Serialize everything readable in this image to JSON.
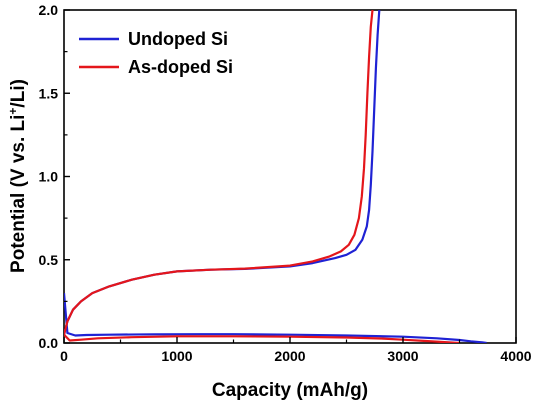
{
  "chart_data": {
    "type": "line",
    "xlabel": "Capacity (mAh/g)",
    "ylabel_parts": {
      "main": "Potential (V vs. Li",
      "superscript": "+",
      "end": "/Li)"
    },
    "xlim": [
      0,
      4000
    ],
    "ylim": [
      0,
      2.0
    ],
    "xticks": [
      "0",
      "1000",
      "2000",
      "3000",
      "4000"
    ],
    "yticks": [
      "0.0",
      "0.5",
      "1.0",
      "1.5",
      "2.0"
    ],
    "grid": false,
    "legend": "top-left",
    "series": [
      {
        "name": "Undoped Si",
        "color": "#1f22d4",
        "segments": [
          {
            "label": "discharge",
            "x": [
              0,
              30,
              100,
              200,
              400,
              800,
              1200,
              1500,
              2000,
              2500,
              3000,
              3300,
              3500,
              3600,
              3700,
              3740
            ],
            "y": [
              0.3,
              0.06,
              0.045,
              0.048,
              0.05,
              0.052,
              0.053,
              0.053,
              0.05,
              0.045,
              0.038,
              0.028,
              0.018,
              0.01,
              0.004,
              0.0
            ]
          },
          {
            "label": "charge",
            "x": [
              0,
              30,
              80,
              150,
              250,
              400,
              600,
              800,
              1000,
              1300,
              1600,
              2000,
              2200,
              2400,
              2500,
              2580,
              2640,
              2680,
              2700,
              2715,
              2730,
              2745,
              2760,
              2775,
              2790
            ],
            "y": [
              0.05,
              0.13,
              0.2,
              0.25,
              0.3,
              0.34,
              0.38,
              0.41,
              0.43,
              0.44,
              0.445,
              0.46,
              0.48,
              0.51,
              0.53,
              0.56,
              0.62,
              0.7,
              0.8,
              0.95,
              1.15,
              1.4,
              1.65,
              1.85,
              2.0
            ]
          }
        ]
      },
      {
        "name": "As-doped Si",
        "color": "#e4161b",
        "segments": [
          {
            "label": "discharge",
            "x": [
              0,
              50,
              150,
              300,
              600,
              1000,
              1500,
              2000,
              2500,
              2800,
              3000,
              3200,
              3350,
              3480,
              3500
            ],
            "y": [
              0.05,
              0.015,
              0.02,
              0.028,
              0.035,
              0.04,
              0.04,
              0.038,
              0.033,
              0.027,
              0.02,
              0.012,
              0.006,
              0.001,
              0.0
            ]
          },
          {
            "label": "charge",
            "x": [
              0,
              30,
              80,
              150,
              250,
              400,
              600,
              800,
              1000,
              1300,
              1600,
              2000,
              2200,
              2350,
              2450,
              2520,
              2570,
              2610,
              2635,
              2655,
              2670,
              2685,
              2700,
              2715,
              2730
            ],
            "y": [
              0.05,
              0.13,
              0.2,
              0.25,
              0.3,
              0.34,
              0.38,
              0.41,
              0.43,
              0.44,
              0.447,
              0.465,
              0.49,
              0.52,
              0.55,
              0.59,
              0.65,
              0.75,
              0.88,
              1.05,
              1.25,
              1.5,
              1.72,
              1.9,
              2.0
            ]
          }
        ]
      }
    ]
  }
}
